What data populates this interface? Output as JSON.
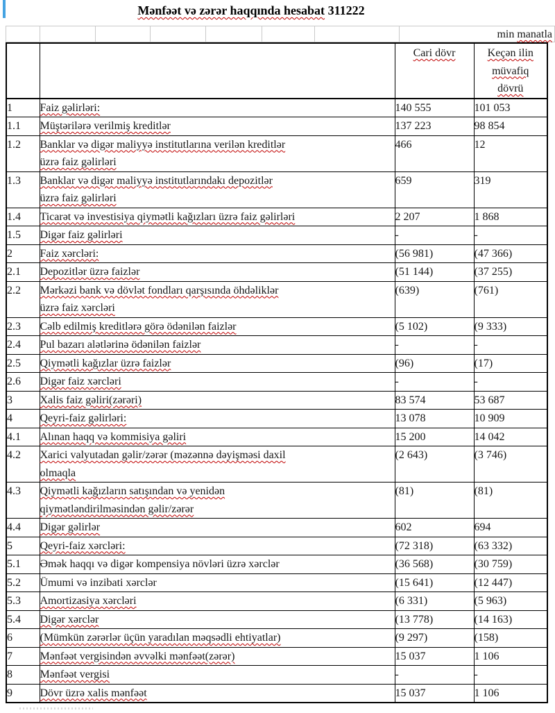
{
  "page": {
    "title_text": "Mənfəət və zərər haqqında hesabat",
    "title_number": "311222",
    "unit_note_prefix": "min ",
    "unit_note_word": "manatla"
  },
  "colors": {
    "accent_blue": "#45a3e2",
    "squiggle_red": "#c00000",
    "border_black": "#000000",
    "grid_gray": "#c9c9c9"
  },
  "table": {
    "columns": {
      "current": "Cari dövr",
      "previous": "Keçən ilin müvafiq dövrü"
    },
    "rows": [
      {
        "no": "1",
        "label": "Faiz gəlirləri:",
        "current": "140 555",
        "previous": "101 053",
        "bold": true,
        "bold_values": false,
        "wavy": true
      },
      {
        "no": "1.1",
        "label": "Müştərilərə verilmiş kreditlər",
        "current": "137 223",
        "previous": "98 854",
        "bold": false,
        "bold_values": false,
        "wavy": true
      },
      {
        "no": "1.2",
        "label": "Banklar və digər maliyyə institutlarına verilən kreditlər\nüzrə faiz gəlirləri",
        "current": "466",
        "previous": "12",
        "bold": false,
        "bold_values": false,
        "wavy": true
      },
      {
        "no": "1.3",
        "label": "Banklar və digər maliyyə institutlarındakı depozitlər\nüzrə faiz gəlirləri",
        "current": "659",
        "previous": "319",
        "bold": false,
        "bold_values": false,
        "wavy": true
      },
      {
        "no": "1.4",
        "label": "Ticarət və investisiya qiymətli kağızları üzrə faiz gəlirləri",
        "current": "2 207",
        "previous": "1 868",
        "bold": false,
        "bold_values": false,
        "wavy": true
      },
      {
        "no": "1.5",
        "label": "Digər faiz gəlirləri",
        "current": "-",
        "previous": "-",
        "bold": false,
        "bold_values": false,
        "wavy": true
      },
      {
        "no": "2",
        "label": "Faiz xərcləri:",
        "current": "(56 981)",
        "previous": "(47 366)",
        "bold": true,
        "bold_values": false,
        "wavy": true
      },
      {
        "no": "2.1",
        "label": "Depozitlər üzrə faizlər",
        "current": "(51 144)",
        "previous": "(37 255)",
        "bold": false,
        "bold_values": false,
        "wavy": true
      },
      {
        "no": "2.2",
        "label": "Mərkəzi bank və dövlət fondları qarşısında öhdəliklər\nüzrə faiz xərcləri",
        "current": "(639)",
        "previous": "(761)",
        "bold": false,
        "bold_values": false,
        "wavy": true
      },
      {
        "no": "2.3",
        "label": "Cəlb edilmiş kreditlərə görə ödənilən faizlər",
        "current": "(5 102)",
        "previous": "(9 333)",
        "bold": false,
        "bold_values": false,
        "wavy": true
      },
      {
        "no": "2.4",
        "label": "Pul bazarı alətlərinə ödənilən faizlər",
        "current": "-",
        "previous": "-",
        "bold": false,
        "bold_values": false,
        "wavy": true
      },
      {
        "no": "2.5",
        "label": "Qiymətli kağızlar üzrə faizlər",
        "current": "(96)",
        "previous": "(17)",
        "bold": false,
        "bold_values": false,
        "wavy": true
      },
      {
        "no": "2.6",
        "label": "Digər faiz xərcləri",
        "current": "-",
        "previous": "-",
        "bold": false,
        "bold_values": false,
        "wavy": true
      },
      {
        "no": "3",
        "label": "Xalis faiz gəliri(zərəri)",
        "current": "83 574",
        "previous": "53 687",
        "bold": true,
        "bold_values": true,
        "wavy": true
      },
      {
        "no": "4",
        "label": "Qeyri-faiz gəlirləri:",
        "current": "13 078",
        "previous": "10 909",
        "bold": true,
        "bold_values": false,
        "wavy": true
      },
      {
        "no": "4.1",
        "label": "Alınan haqq və kommisiya gəliri",
        "current": "15 200",
        "previous": "14 042",
        "bold": false,
        "bold_values": false,
        "wavy": true
      },
      {
        "no": "4.2",
        "label": "Xarici valyutadan gəlir/zərər (məzənnə dəyişməsi daxil\nolmaqla",
        "current": "(2 643)",
        "previous": "(3 746)",
        "bold": false,
        "bold_values": false,
        "wavy": true
      },
      {
        "no": "4.3",
        "label": "Qiymətli kağızların satışından və yenidən\nqiymətləndirilməsindən gəlir/zərər",
        "current": "(81)",
        "previous": "(81)",
        "bold": false,
        "bold_values": false,
        "wavy": true
      },
      {
        "no": "4.4",
        "label": "Digər gəlirlər",
        "current": "602",
        "previous": "694",
        "bold": false,
        "bold_values": false,
        "wavy": true
      },
      {
        "no": "5",
        "label": "Qeyri-faiz xərcləri:",
        "current": "(72 318)",
        "previous": "(63 332)",
        "bold": true,
        "bold_values": false,
        "wavy": true
      },
      {
        "no": "5.1",
        "label": "Əmək haqqı və digər kompensiya növləri üzrə xərclər",
        "current": "(36 568)",
        "previous": "(30 759)",
        "bold": false,
        "bold_values": false,
        "wavy": false
      },
      {
        "no": "5.2",
        "label": "Ümumi və inzibati xərclər",
        "current": "(15 641)",
        "previous": "(12 447)",
        "bold": false,
        "bold_values": false,
        "wavy": false
      },
      {
        "no": "5.3",
        "label": "Amortizasiya xərcləri",
        "current": "(6 331)",
        "previous": "(5 963)",
        "bold": false,
        "bold_values": false,
        "wavy": true
      },
      {
        "no": "5.4",
        "label": "Digər xərclər",
        "current": "(13 778)",
        "previous": "(14 163)",
        "bold": false,
        "bold_values": false,
        "wavy": true
      },
      {
        "no": "6",
        "label": "(Mümkün zərərlər üçün yaradılan məqsədli ehtiyatlar)",
        "current": "(9 297)",
        "previous": "(158)",
        "bold": true,
        "bold_values": false,
        "wavy": true
      },
      {
        "no": "7",
        "label": "Mənfəət vergisindən əvvəlki mənfəət(zərər)",
        "current": "15 037",
        "previous": "1 106",
        "bold": true,
        "bold_values": true,
        "wavy": true
      },
      {
        "no": "8",
        "label": "Mənfəət vergisi",
        "current": "-",
        "previous": "-",
        "bold": true,
        "bold_values": false,
        "wavy": true
      },
      {
        "no": "9",
        "label": "Dövr üzrə xalis mənfəət",
        "current": "15 037",
        "previous": "1 106",
        "bold": true,
        "bold_values": true,
        "wavy": true
      }
    ]
  }
}
